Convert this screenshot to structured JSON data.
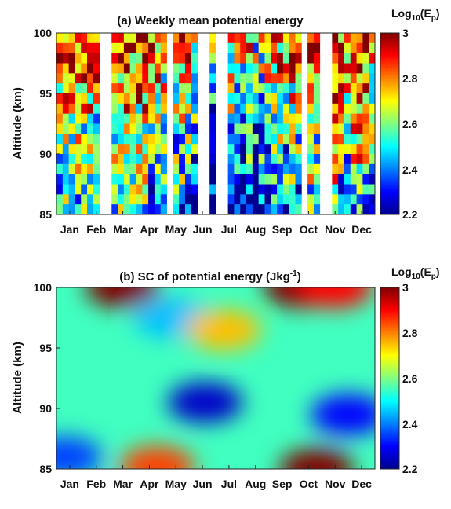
{
  "colors": {
    "colormap": [
      "#00008f",
      "#0000ff",
      "#0080ff",
      "#00ffff",
      "#80ff80",
      "#ffff00",
      "#ff8000",
      "#ff0000",
      "#800000"
    ],
    "gap": "#ffffff"
  },
  "colorbar": {
    "label_base": "Log",
    "label_sub": "10",
    "label_open": "(E",
    "label_sub2": "p",
    "label_close": ")",
    "range": [
      2.2,
      3.0
    ],
    "ticks": [
      "3",
      "2.8",
      "2.6",
      "2.4",
      "2.2"
    ]
  },
  "chart_data": [
    {
      "type": "heatmap",
      "title": "(a) Weekly mean potential energy",
      "ylabel": "Altitude (km)",
      "xlabel": "",
      "x_categories": [
        "Jan",
        "Feb",
        "Mar",
        "Apr",
        "May",
        "Jun",
        "Jul",
        "Aug",
        "Sep",
        "Oct",
        "Nov",
        "Dec"
      ],
      "ylim": [
        85,
        100
      ],
      "y_ticks": [
        "100",
        "95",
        "90",
        "85"
      ],
      "clim": [
        2.2,
        3.0
      ],
      "weeks": 52,
      "missing_weeks": [
        7,
        8,
        18,
        23,
        24,
        26,
        27,
        40,
        43,
        44
      ],
      "description_of_values": "Weekly columns of log10(Ep) vs altitude; high values (up to ~3) near 100 km, low values (~2.2-2.4) below 90 km, with large week-to-week variability."
    },
    {
      "type": "heatmap",
      "title_main": "(b) SC of potential energy (Jkg",
      "title_sup": "-1",
      "title_end": ")",
      "ylabel": "Altitude (km)",
      "xlabel": "",
      "x_categories": [
        "Jan",
        "Feb",
        "Mar",
        "Apr",
        "May",
        "Jun",
        "Jul",
        "Aug",
        "Sep",
        "Oct",
        "Nov",
        "Dec"
      ],
      "ylim": [
        85,
        100
      ],
      "y_ticks": [
        "100",
        "95",
        "90",
        "85"
      ],
      "clim": [
        2.2,
        3.0
      ],
      "features": [
        {
          "x_month": 2.5,
          "y_km": 100,
          "value": 3.0
        },
        {
          "x_month": 9.2,
          "y_km": 100,
          "value": 3.0
        },
        {
          "x_month": 10.5,
          "y_km": 100,
          "value": 2.9
        },
        {
          "x_month": 3.8,
          "y_km": 85.2,
          "value": 2.85
        },
        {
          "x_month": 9.8,
          "y_km": 85.0,
          "value": 3.0
        },
        {
          "x_month": 5.6,
          "y_km": 90.5,
          "value": 2.25
        },
        {
          "x_month": 11.0,
          "y_km": 89.5,
          "value": 2.3
        },
        {
          "x_month": 0.3,
          "y_km": 86,
          "value": 2.35
        },
        {
          "x_month": 4.3,
          "y_km": 97.5,
          "value": 2.45
        },
        {
          "x_month": 6.3,
          "y_km": 96.5,
          "value": 2.75
        }
      ],
      "background_value": 2.55
    }
  ]
}
